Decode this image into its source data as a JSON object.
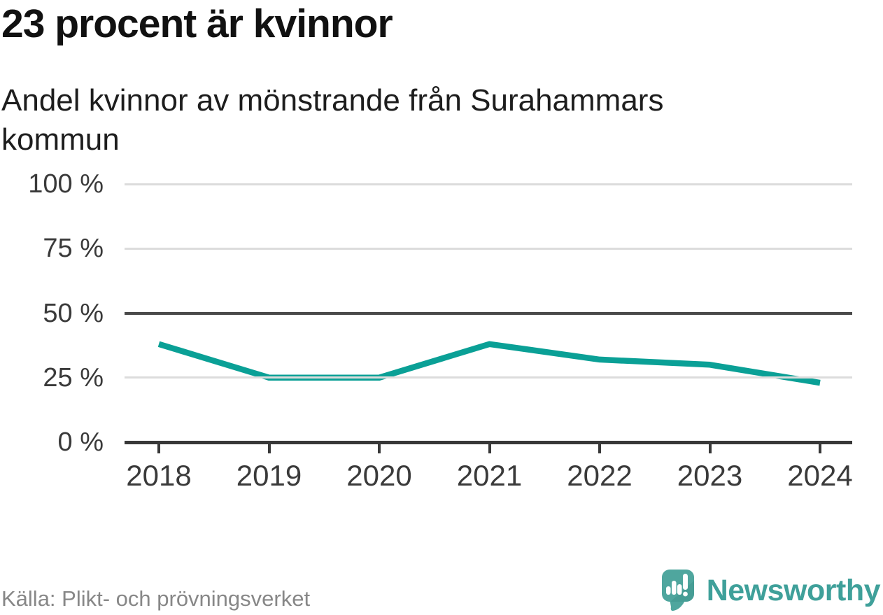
{
  "header": {
    "title": "23 procent är kvinnor",
    "subtitle": "Andel kvinnor av mönstrande från Surahammars kommun"
  },
  "chart_data": {
    "type": "line",
    "title": "23 procent är kvinnor",
    "subtitle": "Andel kvinnor av mönstrande från Surahammars kommun",
    "categories": [
      "2018",
      "2019",
      "2020",
      "2021",
      "2022",
      "2023",
      "2024"
    ],
    "series": [
      {
        "name": "Andel kvinnor av mönstrande",
        "values": [
          38,
          25,
          25,
          38,
          32,
          30,
          23
        ]
      }
    ],
    "unit": "%",
    "ylim": [
      0,
      100
    ],
    "yticks": [
      {
        "value": 0,
        "label": "0 %"
      },
      {
        "value": 25,
        "label": "25 %"
      },
      {
        "value": 50,
        "label": "50 %"
      },
      {
        "value": 75,
        "label": "75 %"
      },
      {
        "value": 100,
        "label": "100 %"
      }
    ],
    "grid": "horizontal",
    "emphasized_gridline_value": 50,
    "baseline_value": 0,
    "legend": "none",
    "line_color": "#0aa096"
  },
  "footer": {
    "source": "Källa: Plikt- och prövningsverket",
    "brand": "Newsworthy"
  },
  "colors": {
    "accent_teal": "#0aa096",
    "logo_teal": "#4fa69e",
    "logo_teal_dark": "#3f968e",
    "wordmark_teal": "#3fa09a",
    "grid_light": "#dcdcdc",
    "grid_dark": "#4a4a4a",
    "axis_color": "#383838",
    "title_color": "#111111",
    "muted_text": "#878787"
  }
}
